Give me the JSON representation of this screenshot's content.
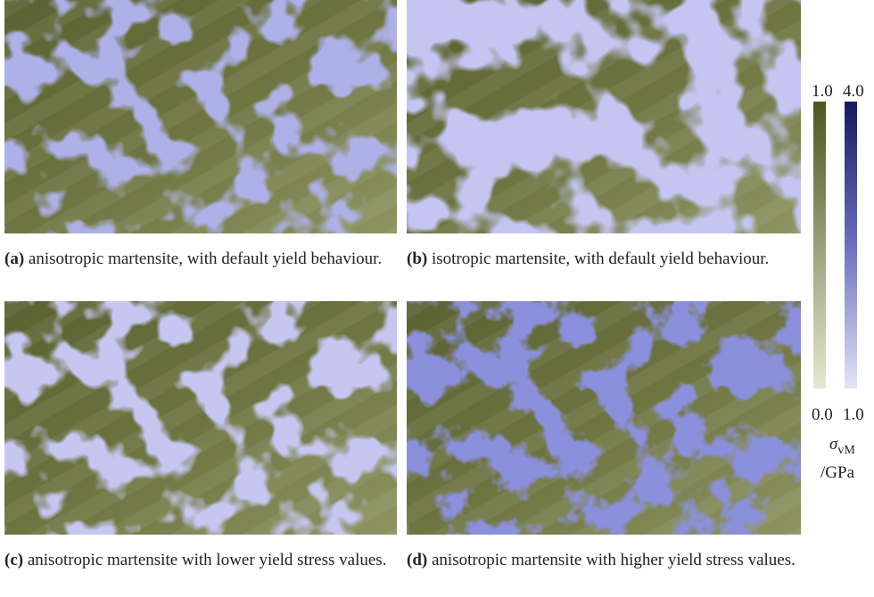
{
  "panels": [
    {
      "label": "(a)",
      "caption": "anisotropic martensite, with default yield behaviour."
    },
    {
      "label": "(b)",
      "caption": "isotropic martensite, with default yield behaviour."
    },
    {
      "label": "(c)",
      "caption": "anisotropic martensite with lower yield stress values."
    },
    {
      "label": "(d)",
      "caption": "anisotropic martensite with higher yield stress values."
    }
  ],
  "colorbar": {
    "left": {
      "max": "1.0",
      "min": "0.0"
    },
    "right": {
      "max": "4.0",
      "min": "1.0"
    },
    "symbol": "σ",
    "subscript": "vM",
    "unit": "/GPa"
  }
}
